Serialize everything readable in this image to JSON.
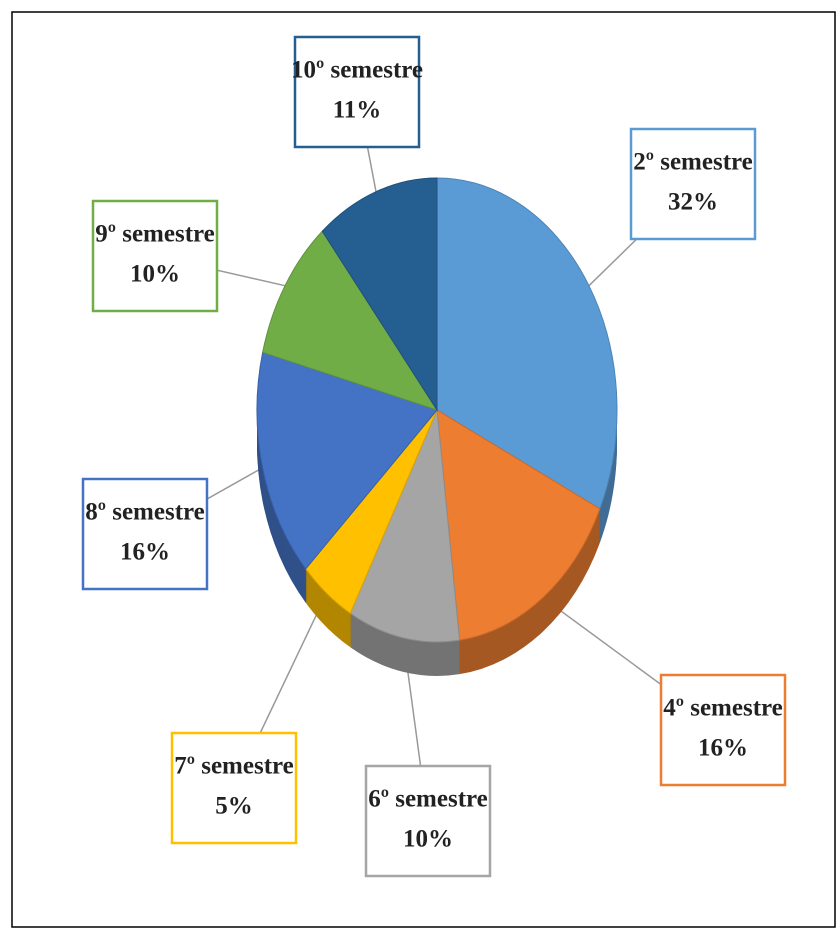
{
  "chart_data": {
    "type": "pie",
    "categories": [
      "2º semestre",
      "4º semestre",
      "6º semestre",
      "7º semestre",
      "8º semestre",
      "9º semestre",
      "10º semestre"
    ],
    "values": [
      32,
      16,
      10,
      5,
      16,
      10,
      11
    ],
    "value_labels": [
      "32%",
      "16%",
      "10%",
      "5%",
      "16%",
      "10%",
      "11%"
    ],
    "colors": [
      "#5b9bd5",
      "#ed7d31",
      "#a5a5a5",
      "#ffc000",
      "#4472c4",
      "#70ad47",
      "#255e91"
    ]
  }
}
